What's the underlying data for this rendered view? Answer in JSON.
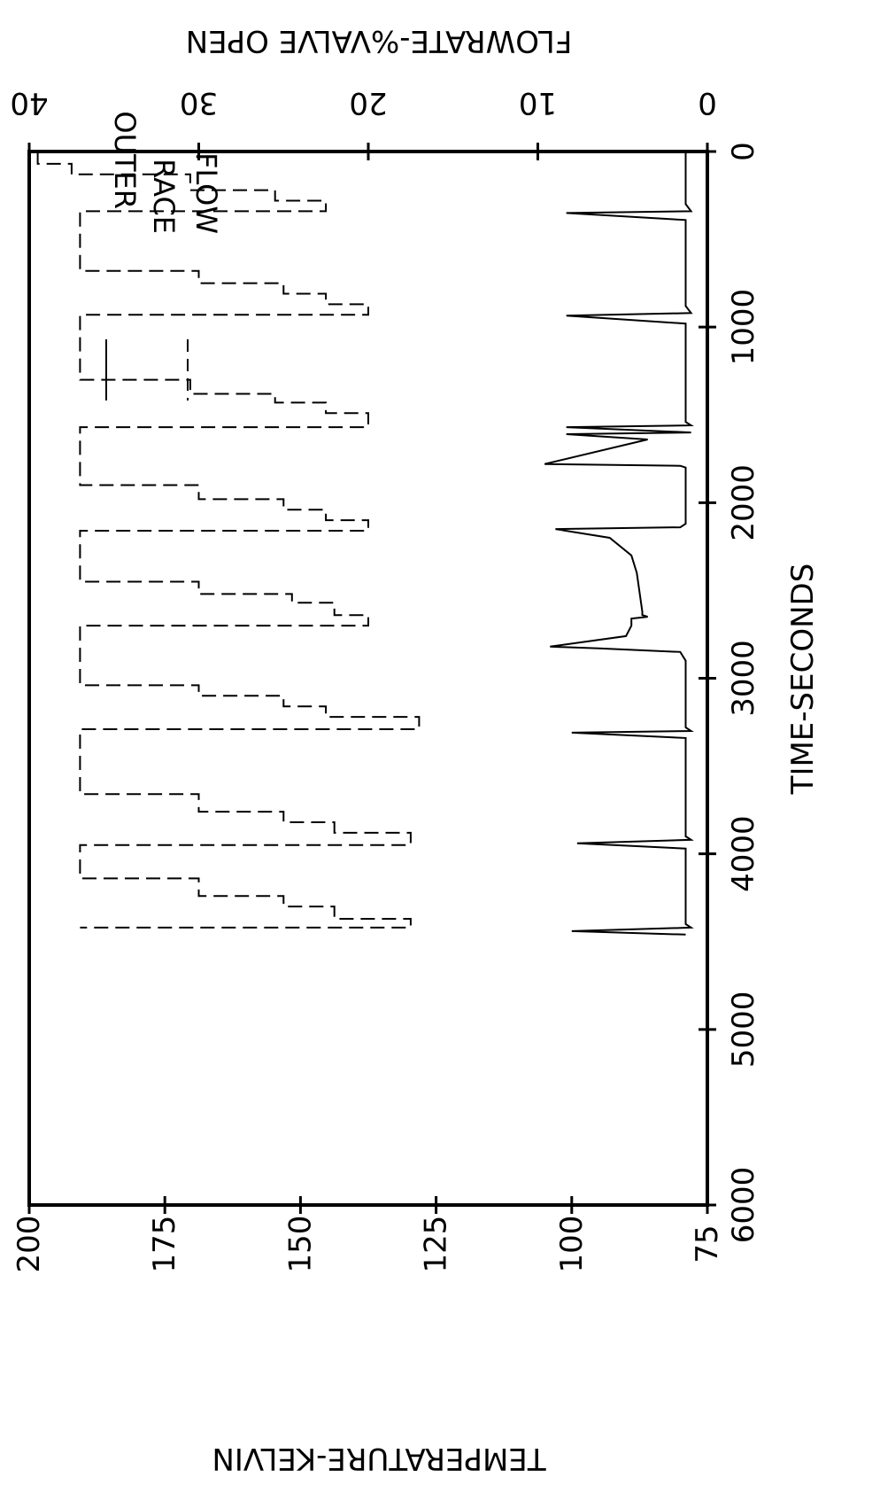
{
  "chart_data": {
    "type": "line",
    "xlabel": "TIME-SECONDS",
    "ylabel_left": "TEMPERATURE-KELVIN",
    "ylabel_right": "FLOWRATE-%VALVE OPEN",
    "xlim": [
      0,
      6000
    ],
    "ylim_left": [
      75,
      200
    ],
    "ylim_right": [
      0,
      40
    ],
    "x_ticks": [
      "0",
      "1000",
      "2000",
      "3000",
      "4000",
      "5000",
      "6000"
    ],
    "y_left_ticks": [
      "200",
      "175",
      "150",
      "125",
      "100",
      "75"
    ],
    "y_right_ticks": [
      "40",
      "30",
      "20",
      "10",
      "0"
    ],
    "legend": {
      "placement": "top-right",
      "entries": [
        {
          "label": "OUTER",
          "style": "solid"
        },
        {
          "label": "RACE",
          "style": "none"
        },
        {
          "label": "FLOW",
          "style": "dashed"
        }
      ]
    },
    "series": [
      {
        "name": "OUTER RACE",
        "axis": "left",
        "style": "solid",
        "x": [
          0,
          300,
          340,
          350,
          390,
          880,
          920,
          935,
          980,
          1540,
          1560,
          1570,
          1600,
          1610,
          1640,
          1780,
          1790,
          1800,
          2120,
          2140,
          2150,
          2200,
          2300,
          2400,
          2620,
          2640,
          2650,
          2660,
          2680,
          2700,
          2760,
          2820,
          2830,
          2850,
          2900,
          3280,
          3300,
          3310,
          3340,
          3900,
          3920,
          3940,
          3970,
          4400,
          4420,
          4440,
          4460
        ],
        "y": [
          79,
          79,
          78,
          101,
          79,
          79,
          78,
          101,
          79,
          79,
          78,
          101,
          78,
          101,
          86,
          105,
          80,
          79,
          79,
          80,
          103,
          93,
          89,
          88,
          87,
          87,
          86,
          89,
          89,
          89,
          90,
          104,
          95,
          80,
          79,
          79,
          78,
          100,
          79,
          79,
          78,
          99,
          79,
          79,
          78,
          100,
          79
        ]
      },
      {
        "name": "FLOW",
        "axis": "right",
        "style": "dashed",
        "x": [
          0,
          70,
          70,
          130,
          130,
          220,
          220,
          280,
          280,
          340,
          340,
          680,
          680,
          750,
          750,
          810,
          810,
          870,
          870,
          930,
          930,
          1300,
          1300,
          1380,
          1380,
          1430,
          1430,
          1490,
          1490,
          1570,
          1570,
          1900,
          1900,
          1980,
          1980,
          2040,
          2040,
          2100,
          2100,
          2160,
          2160,
          2450,
          2450,
          2520,
          2520,
          2570,
          2570,
          2640,
          2640,
          2700,
          2700,
          3040,
          3040,
          3100,
          3100,
          3160,
          3160,
          3220,
          3220,
          3290,
          3290,
          3660,
          3660,
          3760,
          3760,
          3820,
          3820,
          3880,
          3880,
          3950,
          3950,
          4140,
          4140,
          4240,
          4240,
          4300,
          4300,
          4370,
          4370,
          4420,
          4420
        ],
        "y": [
          39.5,
          39.5,
          37.5,
          37.5,
          30.5,
          30.5,
          25.5,
          25.5,
          22.5,
          22.5,
          37,
          37,
          30,
          30,
          25,
          25,
          22.5,
          22.5,
          20,
          20,
          37,
          37,
          30.5,
          30.5,
          25.5,
          25.5,
          22.5,
          22.5,
          20,
          20,
          37,
          37,
          30,
          30,
          25,
          25,
          22.5,
          22.5,
          20,
          20,
          37,
          37,
          30,
          30,
          24.5,
          24.5,
          22,
          22,
          20,
          20,
          37,
          37,
          30,
          30,
          25,
          25,
          22.5,
          22.5,
          17,
          17,
          37,
          37,
          30,
          30,
          25,
          25,
          22,
          22,
          17.5,
          17.5,
          37,
          37,
          30,
          30,
          25,
          25,
          22,
          22,
          17.5,
          17.5,
          37
        ]
      }
    ]
  }
}
